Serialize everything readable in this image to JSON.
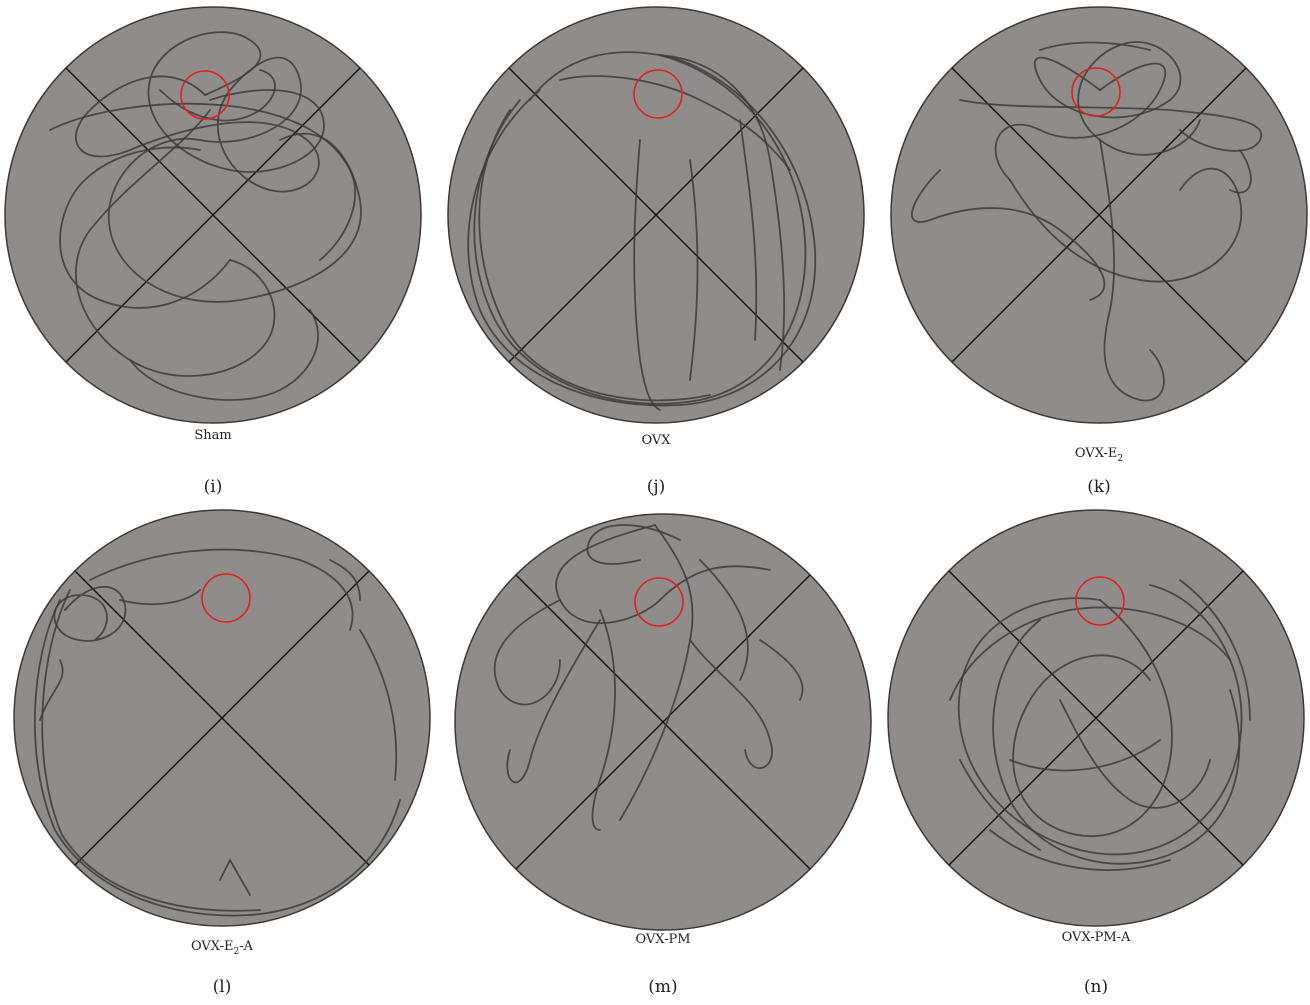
{
  "colors": {
    "pool_fill": "#8f8c8b",
    "pool_border": "#3a3a3a",
    "quadrant_line": "#111111",
    "platform_ring": "#e0201f",
    "swim_path": "#3c3c3c"
  },
  "panels": [
    {
      "group": "Sham",
      "id": "(i)",
      "path_pattern": "concentrated-near-platform"
    },
    {
      "group": "OVX",
      "id": "(j)",
      "path_pattern": "thigmotaxis-perimeter"
    },
    {
      "group_main": "OVX-E",
      "group_sub": "2",
      "id": "(k)",
      "path_pattern": "concentrated-near-platform"
    },
    {
      "group_main": "OVX-E",
      "group_sub": "2",
      "group_tail": "-A",
      "id": "(l)",
      "path_pattern": "thigmotaxis-perimeter"
    },
    {
      "group": "OVX-PM",
      "id": "(m)",
      "path_pattern": "concentrated-near-platform"
    },
    {
      "group": "OVX-PM-A",
      "id": "(n)",
      "path_pattern": "distributed-search"
    }
  ]
}
